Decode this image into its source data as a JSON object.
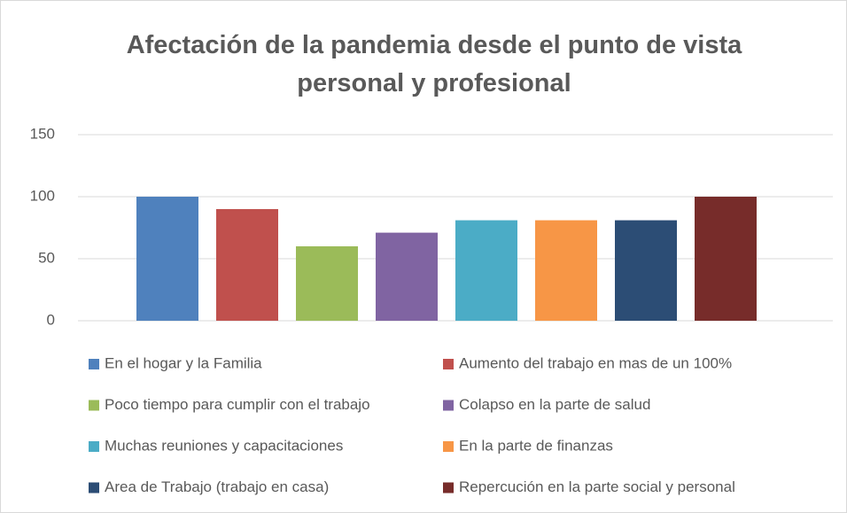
{
  "chart_data": {
    "type": "bar",
    "title": "Afectación de la pandemia desde el punto de vista personal y profesional",
    "ylim": [
      0,
      150
    ],
    "yticks": [
      0,
      50,
      100,
      150
    ],
    "grid": true,
    "legend": "bottom",
    "series": [
      {
        "name": "En el hogar y la Familia",
        "color": "#4f81bd",
        "values": [
          100
        ]
      },
      {
        "name": "Aumento del trabajo en mas de un 100%",
        "color": "#c0504d",
        "values": [
          90
        ]
      },
      {
        "name": "Poco tiempo para cumplir con el trabajo",
        "color": "#9bbb59",
        "values": [
          60
        ]
      },
      {
        "name": "Colapso en la parte de salud",
        "color": "#8064a2",
        "values": [
          71
        ]
      },
      {
        "name": "Muchas reuniones y capacitaciones",
        "color": "#4bacc6",
        "values": [
          81
        ]
      },
      {
        "name": "En la parte de finanzas",
        "color": "#f79646",
        "values": [
          81
        ]
      },
      {
        "name": "Area de Trabajo (trabajo en casa)",
        "color": "#2c4d75",
        "values": [
          81
        ]
      },
      {
        "name": "Repercución en la parte social y personal",
        "color": "#772c2a",
        "values": [
          100
        ]
      }
    ]
  }
}
